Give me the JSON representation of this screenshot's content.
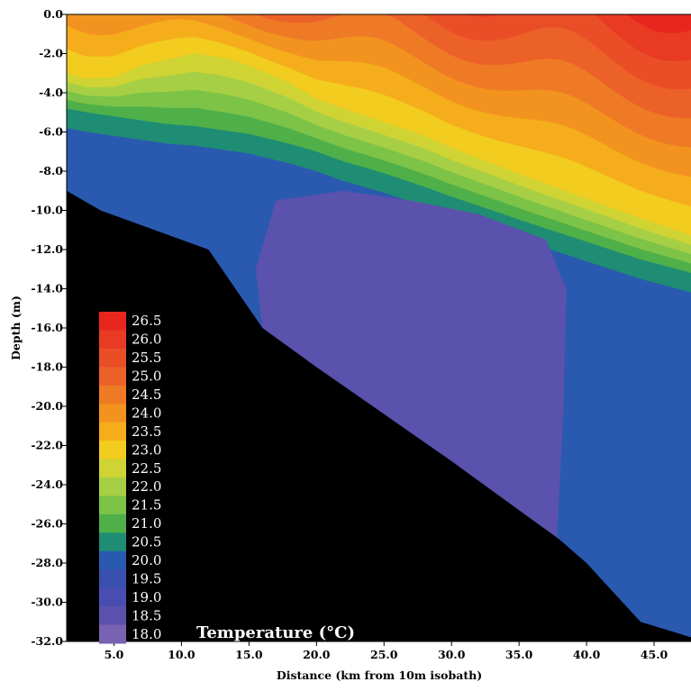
{
  "chart_data": {
    "type": "heatmap",
    "title": "",
    "xlabel": "Distance (km from 10m isobath)",
    "ylabel": "Depth (m)",
    "xlim": [
      1.5,
      47.8
    ],
    "ylim": [
      -32.0,
      0.0
    ],
    "x_ticks": [
      5.0,
      10.0,
      15.0,
      20.0,
      25.0,
      30.0,
      35.0,
      40.0,
      45.0
    ],
    "x_tick_labels": [
      "5.0",
      "10.0",
      "15.0",
      "20.0",
      "25.0",
      "30.0",
      "35.0",
      "40.0",
      "45.0"
    ],
    "y_ticks": [
      0,
      -2,
      -4,
      -6,
      -8,
      -10,
      -12,
      -14,
      -16,
      -18,
      -20,
      -22,
      -24,
      -26,
      -28,
      -30,
      -32
    ],
    "y_tick_labels": [
      "0.0",
      "-2.0",
      "-4.0",
      "-6.0",
      "-8.0",
      "-10.0",
      "-12.0",
      "-14.0",
      "-16.0",
      "-18.0",
      "-20.0",
      "-22.0",
      "-24.0",
      "-26.0",
      "-28.0",
      "-30.0",
      "-32.0"
    ],
    "colorbar": {
      "title": "Temperature (°C)",
      "levels": [
        "26.5",
        "26.0",
        "25.5",
        "25.0",
        "24.5",
        "24.0",
        "23.5",
        "23.0",
        "22.5",
        "22.0",
        "21.5",
        "21.0",
        "20.5",
        "20.0",
        "19.5",
        "19.0",
        "18.5",
        "18.0"
      ],
      "colors": [
        "#e8261e",
        "#e93a23",
        "#ea4e27",
        "#ec6128",
        "#ef7a25",
        "#f2931f",
        "#f5ad1c",
        "#f2cc1e",
        "#cfd334",
        "#a6cf45",
        "#7cc347",
        "#4fb04a",
        "#1f8d74",
        "#2a5ab0",
        "#3a50b0",
        "#4a4db0",
        "#5a52ac",
        "#7a62b3"
      ]
    },
    "thermocline_depth": {
      "x": [
        1.5,
        3,
        5,
        7,
        9,
        11,
        13,
        15,
        18,
        20,
        22,
        25,
        28,
        30,
        33,
        36,
        40,
        44,
        47.8
      ],
      "top_23C": [
        -3.0,
        -3.3,
        -3.2,
        -2.6,
        -2.3,
        -2.0,
        -2.2,
        -2.6,
        -3.5,
        -4.3,
        -4.8,
        -5.5,
        -6.2,
        -6.8,
        -7.6,
        -8.4,
        -9.4,
        -10.4,
        -11.3
      ],
      "base_21C": [
        -4.8,
        -5.0,
        -5.2,
        -5.4,
        -5.6,
        -5.7,
        -5.9,
        -6.1,
        -6.6,
        -7.0,
        -7.5,
        -8.1,
        -8.8,
        -9.3,
        -10.0,
        -10.7,
        -11.6,
        -12.5,
        -13.2
      ]
    },
    "bottom_profile": {
      "x": [
        1.5,
        4,
        12,
        16,
        20,
        30,
        38,
        40,
        44,
        47.8
      ],
      "depth": [
        -9.0,
        -10.0,
        -12.0,
        -16.0,
        -18.0,
        -22.8,
        -26.8,
        -28.0,
        -31.0,
        -31.8
      ]
    }
  }
}
